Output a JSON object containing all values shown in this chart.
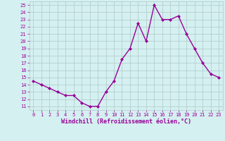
{
  "x": [
    0,
    1,
    2,
    3,
    4,
    5,
    6,
    7,
    8,
    9,
    10,
    11,
    12,
    13,
    14,
    15,
    16,
    17,
    18,
    19,
    20,
    21,
    22,
    23
  ],
  "y": [
    14.5,
    14.0,
    13.5,
    13.0,
    12.5,
    12.5,
    11.5,
    11.0,
    11.0,
    13.0,
    14.5,
    17.5,
    19.0,
    22.5,
    20.0,
    25.0,
    23.0,
    23.0,
    23.5,
    21.0,
    19.0,
    17.0,
    15.5,
    15.0
  ],
  "line_color": "#990099",
  "marker": "D",
  "marker_size": 2,
  "bg_color": "#d4f0f0",
  "grid_color": "#b0c8c8",
  "xlabel": "Windchill (Refroidissement éolien,°C)",
  "xlabel_color": "#990099",
  "tick_color": "#990099",
  "ylabel_ticks": [
    11,
    12,
    13,
    14,
    15,
    16,
    17,
    18,
    19,
    20,
    21,
    22,
    23,
    24,
    25
  ],
  "xlim": [
    -0.5,
    23.5
  ],
  "ylim": [
    10.5,
    25.5
  ],
  "linewidth": 1.0
}
